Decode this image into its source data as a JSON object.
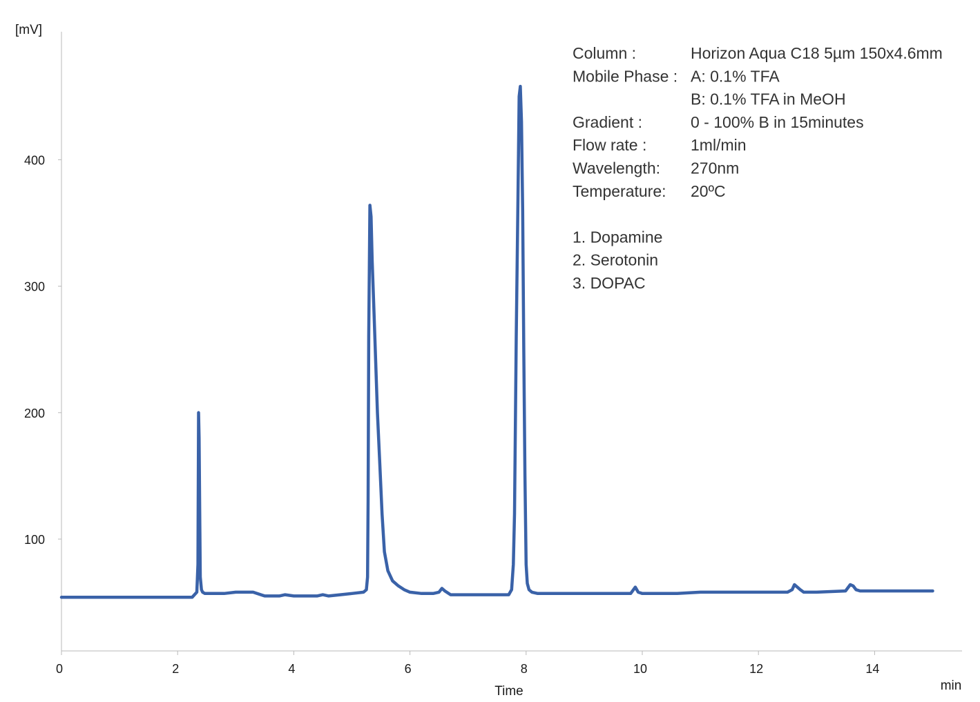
{
  "chart_data": {
    "type": "line",
    "title": "",
    "xlabel": "Time",
    "x_unit": "min",
    "y_unit": "[mV]",
    "xlim": [
      0,
      15.5
    ],
    "ylim": [
      10,
      500
    ],
    "x_ticks": [
      0,
      2,
      4,
      6,
      8,
      10,
      12,
      14
    ],
    "y_ticks": [
      100,
      200,
      300,
      400
    ],
    "grid": false,
    "line_color": "#3a62a8",
    "series": [
      {
        "x": [
          0,
          0.5,
          1.0,
          1.5,
          2.0,
          2.25,
          2.33,
          2.35,
          2.36,
          2.37,
          2.38,
          2.39,
          2.41,
          2.43,
          2.47,
          2.55,
          2.8,
          3.0,
          3.3,
          3.5,
          3.75,
          3.85,
          4.0,
          4.4,
          4.5,
          4.6,
          4.8,
          5.0,
          5.2,
          5.25,
          5.27,
          5.28,
          5.29,
          5.31,
          5.33,
          5.35,
          5.38,
          5.41,
          5.44,
          5.48,
          5.52,
          5.56,
          5.62,
          5.7,
          5.8,
          5.9,
          6.0,
          6.2,
          6.4,
          6.5,
          6.55,
          6.6,
          6.7,
          7.0,
          7.4,
          7.7,
          7.75,
          7.78,
          7.8,
          7.83,
          7.86,
          7.88,
          7.9,
          7.92,
          7.94,
          7.96,
          7.98,
          8.0,
          8.02,
          8.05,
          8.1,
          8.2,
          8.5,
          9.0,
          9.5,
          9.8,
          9.88,
          9.93,
          10.0,
          10.3,
          10.6,
          11.0,
          11.5,
          12.0,
          12.5,
          12.58,
          12.62,
          12.67,
          12.72,
          12.78,
          13.0,
          13.5,
          13.58,
          13.63,
          13.68,
          13.75,
          14.0,
          14.5,
          15.0
        ],
        "y": [
          54,
          54,
          54,
          54,
          54,
          54,
          58,
          80,
          200,
          180,
          120,
          70,
          60,
          58,
          57,
          57,
          57,
          58,
          58,
          55,
          55,
          56,
          55,
          55,
          56,
          55,
          56,
          57,
          58,
          60,
          70,
          130,
          260,
          364,
          355,
          320,
          280,
          240,
          200,
          160,
          120,
          90,
          75,
          67,
          63,
          60,
          58,
          57,
          57,
          58,
          61,
          59,
          56,
          56,
          56,
          56,
          60,
          80,
          120,
          260,
          370,
          450,
          458,
          430,
          360,
          250,
          150,
          80,
          65,
          60,
          58,
          57,
          57,
          57,
          57,
          57,
          62,
          58,
          57,
          57,
          57,
          58,
          58,
          58,
          58,
          60,
          64,
          62,
          60,
          58,
          58,
          59,
          64,
          63,
          60,
          59,
          59,
          59,
          59
        ]
      }
    ],
    "annotations": [
      {
        "label": "Column :",
        "value": "Horizon Aqua C18 5µm 150x4.6mm"
      },
      {
        "label": "Mobile Phase :",
        "value": "A: 0.1% TFA"
      },
      {
        "label": "",
        "value": "B: 0.1% TFA in MeOH"
      },
      {
        "label": "Gradient :",
        "value": "0 - 100% B in 15minutes"
      },
      {
        "label": "Flow rate :",
        "value": "1ml/min"
      },
      {
        "label": "Wavelength:",
        "value": "270nm"
      },
      {
        "label": "Temperature:",
        "value": "20ºC"
      }
    ],
    "peak_list": [
      "1. Dopamine",
      "2. Serotonin",
      "3. DOPAC"
    ]
  }
}
